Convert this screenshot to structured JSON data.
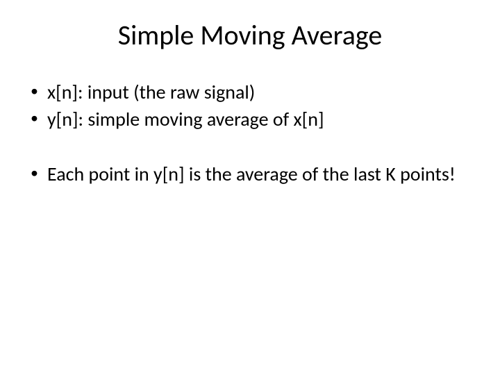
{
  "slide": {
    "title": "Simple Moving Average",
    "bullets": [
      "x[n]: input (the raw signal)",
      "y[n]: simple moving average of x[n]",
      "Each point in y[n] is the average of the last K points!"
    ]
  },
  "style": {
    "background_color": "#ffffff",
    "text_color": "#000000",
    "title_fontsize": 40,
    "body_fontsize": 28,
    "font_family": "Calibri",
    "slide_width": 720,
    "slide_height": 540
  }
}
